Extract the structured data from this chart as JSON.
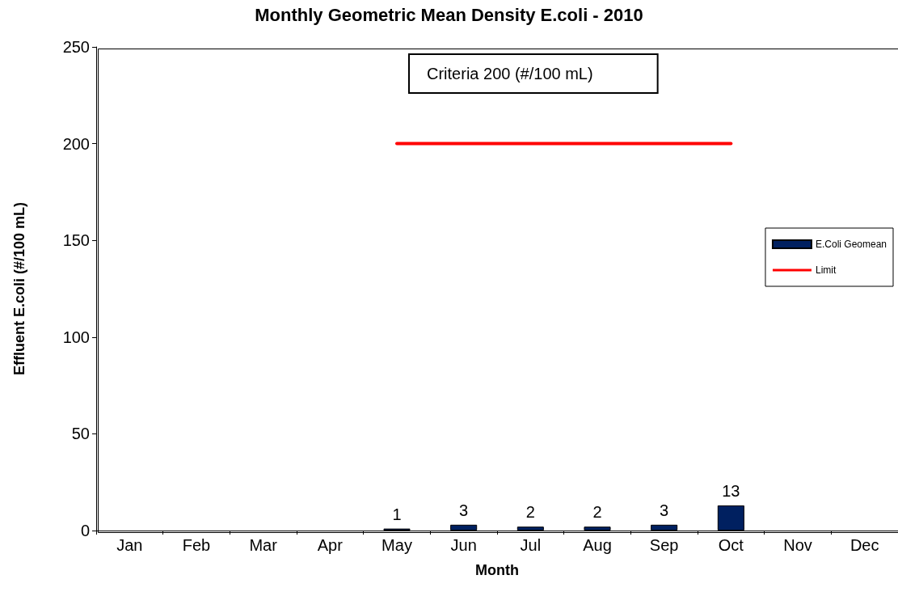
{
  "chart_data": {
    "type": "bar",
    "title": "Monthly Geometric Mean Density E.coli - 2010",
    "xlabel": "Month",
    "ylabel": "Effluent E.coli (#/100 mL)",
    "categories": [
      "Jan",
      "Feb",
      "Mar",
      "Apr",
      "May",
      "Jun",
      "Jul",
      "Aug",
      "Sep",
      "Oct",
      "Nov",
      "Dec"
    ],
    "series": [
      {
        "name": "E.Coli Geomean",
        "color": "#002060",
        "values": [
          null,
          null,
          null,
          null,
          1,
          3,
          2,
          2,
          3,
          13,
          null,
          null
        ],
        "value_labels": [
          null,
          null,
          null,
          null,
          "1",
          "3",
          "2",
          "2",
          "3",
          "13",
          null,
          null
        ]
      },
      {
        "name": "Limit",
        "type": "line",
        "color": "#ff0000",
        "values": [
          null,
          null,
          null,
          null,
          200,
          200,
          200,
          200,
          200,
          200,
          null,
          null
        ]
      }
    ],
    "annotations": [
      "Criteria 200 (#/100 mL)"
    ],
    "ylim": [
      0,
      250
    ],
    "yticks": [
      0,
      50,
      100,
      150,
      200,
      250
    ],
    "grid": false,
    "legend": "right"
  }
}
